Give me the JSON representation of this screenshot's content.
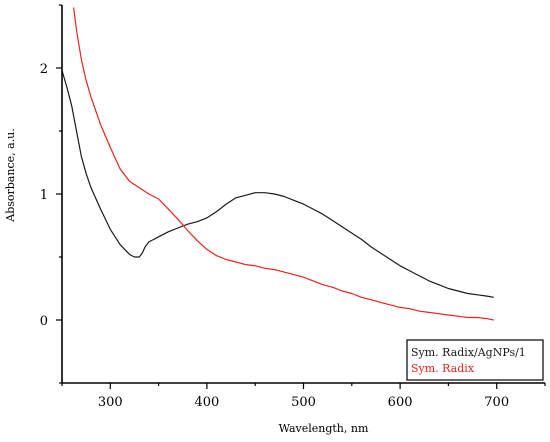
{
  "chart_data": {
    "type": "line",
    "title": "",
    "xlabel": "Wavelength, nm",
    "ylabel": "Absorbance, a.u.",
    "xlim": [
      250,
      750
    ],
    "ylim": [
      -0.5,
      2.5
    ],
    "xticks": [
      300,
      400,
      500,
      600,
      700
    ],
    "xtick_labels": [
      "300",
      "400",
      "500",
      "600",
      "700"
    ],
    "yticks": [
      0,
      1,
      2
    ],
    "ytick_labels": [
      "0",
      "1",
      "2"
    ],
    "grid": false,
    "legend_position": "bottom-right",
    "series": [
      {
        "name": "Sym. Radix/AgNPs/1",
        "color": "#1a1a1a",
        "x": [
          250,
          255,
          260,
          265,
          270,
          275,
          280,
          290,
          300,
          310,
          320,
          325,
          330,
          333,
          336,
          340,
          345,
          350,
          360,
          370,
          380,
          390,
          400,
          410,
          420,
          430,
          440,
          450,
          460,
          470,
          480,
          490,
          500,
          510,
          520,
          530,
          540,
          550,
          560,
          570,
          580,
          590,
          600,
          610,
          620,
          630,
          640,
          650,
          660,
          670,
          680,
          690,
          697
        ],
        "y": [
          1.98,
          1.85,
          1.7,
          1.5,
          1.3,
          1.16,
          1.05,
          0.88,
          0.72,
          0.6,
          0.52,
          0.5,
          0.5,
          0.53,
          0.58,
          0.62,
          0.64,
          0.66,
          0.7,
          0.73,
          0.76,
          0.78,
          0.81,
          0.86,
          0.92,
          0.97,
          0.99,
          1.01,
          1.01,
          1.0,
          0.98,
          0.95,
          0.92,
          0.88,
          0.84,
          0.79,
          0.74,
          0.69,
          0.64,
          0.58,
          0.53,
          0.48,
          0.43,
          0.39,
          0.35,
          0.31,
          0.28,
          0.25,
          0.23,
          0.21,
          0.2,
          0.19,
          0.18
        ]
      },
      {
        "name": "Sym. Radix",
        "color": "#e8231f",
        "x": [
          262,
          265,
          270,
          275,
          280,
          290,
          300,
          310,
          320,
          330,
          340,
          350,
          360,
          370,
          380,
          390,
          400,
          410,
          420,
          430,
          440,
          450,
          460,
          470,
          480,
          490,
          500,
          510,
          520,
          530,
          540,
          550,
          560,
          570,
          580,
          590,
          600,
          610,
          620,
          630,
          640,
          650,
          660,
          670,
          680,
          690,
          697
        ],
        "y": [
          2.48,
          2.3,
          2.07,
          1.9,
          1.77,
          1.55,
          1.37,
          1.2,
          1.1,
          1.05,
          1.0,
          0.96,
          0.88,
          0.8,
          0.71,
          0.63,
          0.56,
          0.51,
          0.48,
          0.46,
          0.44,
          0.43,
          0.41,
          0.4,
          0.38,
          0.36,
          0.34,
          0.31,
          0.28,
          0.26,
          0.23,
          0.21,
          0.18,
          0.16,
          0.14,
          0.12,
          0.1,
          0.09,
          0.07,
          0.06,
          0.05,
          0.04,
          0.03,
          0.02,
          0.02,
          0.01,
          0.0
        ]
      }
    ]
  }
}
